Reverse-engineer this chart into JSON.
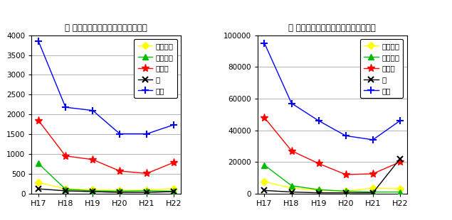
{
  "x_labels": [
    "H17",
    "H18",
    "H19",
    "H20",
    "H21",
    "H22"
  ],
  "chart1": {
    "title1": "回",
    "title2": "集団健康教育開催回数（熊本県）",
    "ylim": [
      0,
      4000
    ],
    "yticks": [
      0,
      500,
      1000,
      1500,
      2000,
      2500,
      3000,
      3500,
      4000
    ],
    "series": {
      "歯周疾患": {
        "color": "#ffff00",
        "marker": "D",
        "values": [
          280,
          120,
          100,
          80,
          90,
          130
        ]
      },
      "骨粗鬆症": {
        "color": "#00bb00",
        "marker": "^",
        "values": [
          760,
          110,
          70,
          60,
          70,
          60
        ]
      },
      "病態別": {
        "color": "#ff0000",
        "marker": "*",
        "values": [
          1850,
          950,
          860,
          570,
          510,
          790
        ]
      },
      "薬": {
        "color": "#000000",
        "marker": "x",
        "values": [
          120,
          70,
          50,
          30,
          30,
          50
        ]
      },
      "一般": {
        "color": "#0000ff",
        "marker": "+",
        "values": [
          3850,
          2180,
          2100,
          1510,
          1510,
          1740
        ]
      }
    }
  },
  "chart2": {
    "title1": "人",
    "title2": "集団健康教育参加延人数（熊本県）",
    "ylim": [
      0,
      100000
    ],
    "yticks": [
      0,
      20000,
      40000,
      60000,
      80000,
      100000
    ],
    "series": {
      "歯周疾患": {
        "color": "#ffff00",
        "marker": "D",
        "values": [
          7500,
          3500,
          2200,
          1500,
          3500,
          3000
        ]
      },
      "骨粗鬆症": {
        "color": "#00bb00",
        "marker": "^",
        "values": [
          18000,
          5000,
          2500,
          1500,
          1000,
          1000
        ]
      },
      "病態別": {
        "color": "#ff0000",
        "marker": "*",
        "values": [
          48000,
          27000,
          19000,
          12000,
          12500,
          20000
        ]
      },
      "薬": {
        "color": "#000000",
        "marker": "x",
        "values": [
          2000,
          1000,
          500,
          500,
          500,
          22000
        ]
      },
      "一般": {
        "color": "#0000ff",
        "marker": "+",
        "values": [
          95000,
          57000,
          46000,
          36500,
          34000,
          46000
        ]
      }
    }
  },
  "legend_labels": [
    "歯周疾患",
    "骨粗鬆症",
    "病態別",
    "薬",
    "一般"
  ],
  "background_color": "#ffffff",
  "grid_color": "#888888"
}
